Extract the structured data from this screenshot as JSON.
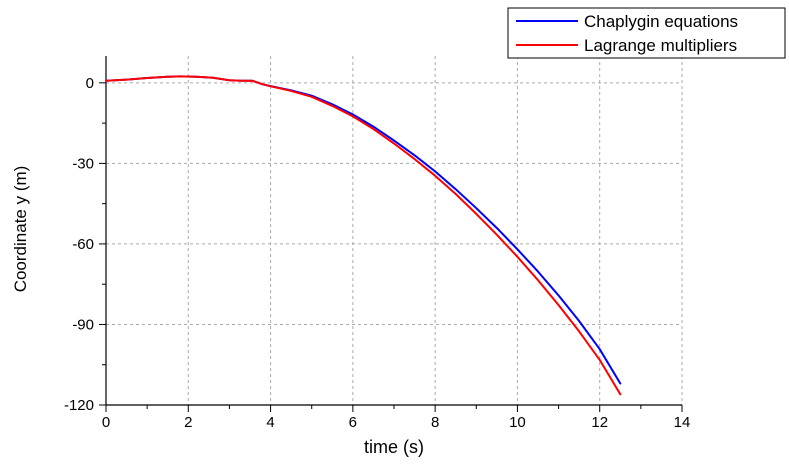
{
  "chart_data": {
    "type": "line",
    "title": "",
    "xlabel": "time (s)",
    "ylabel": "Coordinate y (m)",
    "xlim": [
      0,
      14
    ],
    "ylim": [
      -120,
      10
    ],
    "xticks": [
      0,
      2,
      4,
      6,
      8,
      10,
      12,
      14
    ],
    "yticks": [
      0,
      -30,
      -60,
      -90,
      -120
    ],
    "xtick_labels": [
      "0",
      "2",
      "4",
      "6",
      "8",
      "10",
      "12",
      "14"
    ],
    "ytick_labels": [
      "0",
      "-30",
      "-60",
      "-90",
      "-120"
    ],
    "grid": true,
    "legend_position": "top-right, outside plot",
    "series": [
      {
        "name": "Chaplygin equations",
        "color": "#0000ff",
        "x": [
          0,
          0.5,
          1,
          1.5,
          1.8,
          2.2,
          2.6,
          3,
          3.3,
          3.55,
          3.8,
          4,
          4.5,
          5,
          5.5,
          6,
          6.5,
          7,
          7.5,
          8,
          8.5,
          9,
          9.5,
          10,
          10.5,
          11,
          11.5,
          12,
          12.5
        ],
        "y": [
          0.8,
          1.2,
          1.8,
          2.3,
          2.4,
          2.3,
          1.9,
          1.0,
          0.8,
          0.8,
          -0.5,
          -1.2,
          -2.8,
          -4.8,
          -8.0,
          -11.8,
          -16.3,
          -21.5,
          -27.0,
          -33.0,
          -39.6,
          -46.7,
          -54.1,
          -62.0,
          -70.3,
          -79.2,
          -88.7,
          -99.2,
          -112.0
        ]
      },
      {
        "name": "Lagrange multipliers",
        "color": "#ff0000",
        "x": [
          0,
          0.5,
          1,
          1.5,
          1.8,
          2.2,
          2.6,
          3,
          3.3,
          3.55,
          3.8,
          4,
          4.5,
          5,
          5.5,
          6,
          6.5,
          7,
          7.5,
          8,
          8.5,
          9,
          9.5,
          10,
          10.5,
          11,
          11.5,
          12,
          12.5
        ],
        "y": [
          0.8,
          1.2,
          1.8,
          2.3,
          2.4,
          2.3,
          1.9,
          1.0,
          0.8,
          0.8,
          -0.5,
          -1.3,
          -3.0,
          -5.2,
          -8.6,
          -12.5,
          -17.2,
          -22.6,
          -28.4,
          -34.6,
          -41.4,
          -48.8,
          -56.6,
          -64.8,
          -73.5,
          -82.8,
          -92.6,
          -103.2,
          -116.0
        ]
      }
    ]
  }
}
